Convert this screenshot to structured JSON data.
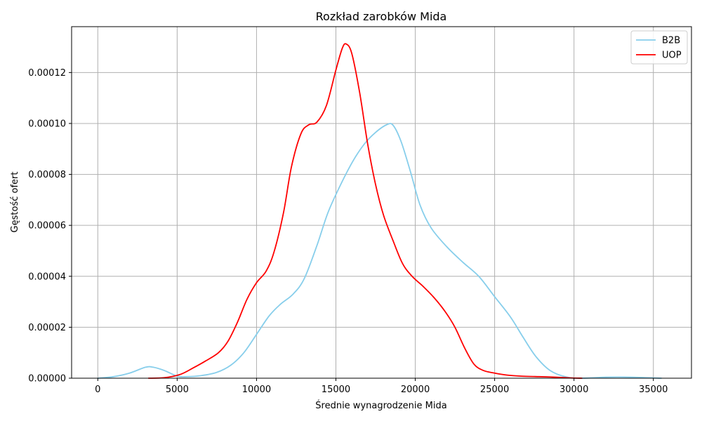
{
  "chart_data": {
    "type": "line",
    "title": "Rozkład zarobków Mida",
    "xlabel": "Średnie wynagrodzenie Mida",
    "ylabel": "Gęstość ofert",
    "xlim": [
      -1650,
      37400
    ],
    "ylim": [
      0,
      0.000138
    ],
    "xticks": [
      0,
      5000,
      10000,
      15000,
      20000,
      25000,
      30000,
      35000
    ],
    "xtick_labels": [
      "0",
      "5000",
      "10000",
      "15000",
      "20000",
      "25000",
      "30000",
      "35000"
    ],
    "yticks": [
      0,
      2e-05,
      4e-05,
      6e-05,
      8e-05,
      0.0001,
      0.00012
    ],
    "ytick_labels": [
      "0.00000",
      "0.00002",
      "0.00004",
      "0.00006",
      "0.00008",
      "0.00010",
      "0.00012"
    ],
    "grid": true,
    "legend_position": "top-right",
    "series": [
      {
        "name": "B2B",
        "color": "#87ceeb",
        "points": [
          [
            0,
            0.0
          ],
          [
            1000,
            6e-07
          ],
          [
            2000,
            2e-06
          ],
          [
            3000,
            4.3e-06
          ],
          [
            3500,
            4.3e-06
          ],
          [
            4200,
            3e-06
          ],
          [
            5000,
            8e-07
          ],
          [
            5600,
            6e-07
          ],
          [
            6500,
            1e-06
          ],
          [
            7500,
            2.3e-06
          ],
          [
            8400,
            5.2e-06
          ],
          [
            9200,
            1e-05
          ],
          [
            10000,
            1.72e-05
          ],
          [
            10800,
            2.45e-05
          ],
          [
            11500,
            2.9e-05
          ],
          [
            12300,
            3.3e-05
          ],
          [
            13000,
            3.9e-05
          ],
          [
            13800,
            5.2e-05
          ],
          [
            14500,
            6.5e-05
          ],
          [
            15300,
            7.6e-05
          ],
          [
            16100,
            8.55e-05
          ],
          [
            16800,
            9.2e-05
          ],
          [
            17500,
            9.65e-05
          ],
          [
            18200,
            9.95e-05
          ],
          [
            18600,
            9.93e-05
          ],
          [
            19100,
            9.3e-05
          ],
          [
            19700,
            8.1e-05
          ],
          [
            20300,
            6.8e-05
          ],
          [
            21000,
            5.9e-05
          ],
          [
            22000,
            5.15e-05
          ],
          [
            23000,
            4.55e-05
          ],
          [
            24000,
            4e-05
          ],
          [
            25000,
            3.2e-05
          ],
          [
            26000,
            2.4e-05
          ],
          [
            26800,
            1.6e-05
          ],
          [
            27600,
            8.5e-06
          ],
          [
            28500,
            3e-06
          ],
          [
            29500,
            5e-07
          ],
          [
            30500,
            0.0
          ],
          [
            32000,
            4e-07
          ],
          [
            33500,
            4e-07
          ],
          [
            35500,
            0.0
          ]
        ]
      },
      {
        "name": "UOP",
        "color": "#ff0000",
        "points": [
          [
            3200,
            0.0
          ],
          [
            4200,
            2e-07
          ],
          [
            5200,
            1.5e-06
          ],
          [
            6000,
            4e-06
          ],
          [
            6800,
            6.8e-06
          ],
          [
            7600,
            1e-05
          ],
          [
            8200,
            1.45e-05
          ],
          [
            8800,
            2.2e-05
          ],
          [
            9400,
            3.1e-05
          ],
          [
            10000,
            3.75e-05
          ],
          [
            10600,
            4.2e-05
          ],
          [
            11100,
            4.95e-05
          ],
          [
            11700,
            6.5e-05
          ],
          [
            12200,
            8.3e-05
          ],
          [
            12800,
            9.6e-05
          ],
          [
            13300,
            9.95e-05
          ],
          [
            13800,
            0.0001005
          ],
          [
            14400,
            0.000107
          ],
          [
            15000,
            0.000121
          ],
          [
            15400,
            0.0001295
          ],
          [
            15650,
            0.0001312
          ],
          [
            16000,
            0.0001275
          ],
          [
            16500,
            0.000112
          ],
          [
            17000,
            9.2e-05
          ],
          [
            17500,
            7.6e-05
          ],
          [
            18000,
            6.4e-05
          ],
          [
            18600,
            5.4e-05
          ],
          [
            19200,
            4.5e-05
          ],
          [
            19800,
            4e-05
          ],
          [
            20500,
            3.6e-05
          ],
          [
            21200,
            3.15e-05
          ],
          [
            21900,
            2.6e-05
          ],
          [
            22500,
            2e-05
          ],
          [
            23100,
            1.2e-05
          ],
          [
            23700,
            5.5e-06
          ],
          [
            24300,
            3e-06
          ],
          [
            25000,
            2e-06
          ],
          [
            25800,
            1.2e-06
          ],
          [
            26700,
            8e-07
          ],
          [
            27800,
            6e-07
          ],
          [
            28800,
            4e-07
          ],
          [
            29800,
            1e-07
          ],
          [
            30500,
            0.0
          ]
        ]
      }
    ]
  }
}
